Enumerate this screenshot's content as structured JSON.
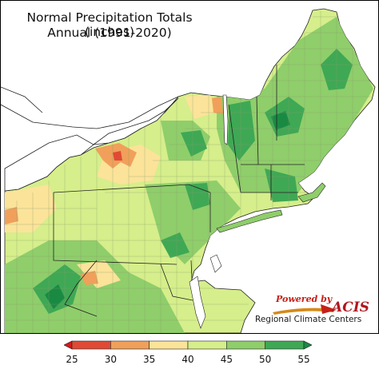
{
  "title": {
    "line1": "Normal Precipitation Totals (inches)",
    "line2": "Annual (1991-2020)"
  },
  "credit": {
    "powered_by": "Powered by",
    "brand": "ACIS",
    "org": "Regional Climate Centers"
  },
  "colors": {
    "lake": "#ffffff",
    "ocean": "#ffffff",
    "border": "#222222",
    "county": "#8a9a6a"
  },
  "legend": {
    "ticks": [
      "25",
      "30",
      "35",
      "40",
      "45",
      "50",
      "55"
    ],
    "bins": [
      {
        "range": "<25",
        "color": "#d7191c"
      },
      {
        "range": "25-30",
        "color": "#e04a35"
      },
      {
        "range": "30-35",
        "color": "#f0a05a"
      },
      {
        "range": "35-40",
        "color": "#fbe39a"
      },
      {
        "range": "40-45",
        "color": "#d6ee8b"
      },
      {
        "range": "45-50",
        "color": "#8fce6b"
      },
      {
        "range": "50-55",
        "color": "#3fa855"
      },
      {
        "range": ">55",
        "color": "#1a8a43"
      }
    ]
  }
}
